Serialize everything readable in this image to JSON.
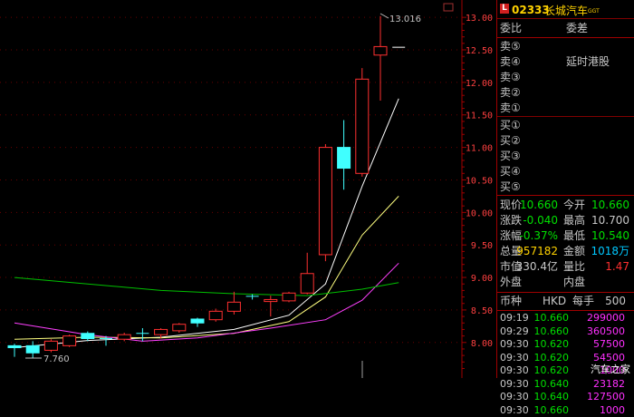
{
  "stock": {
    "badge": "L",
    "code": "02333",
    "name": "长城汽车",
    "tag": "GGT"
  },
  "chart_labels": {
    "high_marker": "13.016",
    "low_marker": "7.760"
  },
  "y_axis": {
    "ticks": [
      "13.00",
      "12.50",
      "12.00",
      "11.50",
      "11.00",
      "10.50",
      "10.00",
      "9.50",
      "9.00",
      "8.50",
      "8.00"
    ]
  },
  "order_book": {
    "ratio_label": "委比",
    "diff_label": "委差",
    "sell": [
      "卖⑤",
      "卖④",
      "卖③",
      "卖②",
      "卖①"
    ],
    "buy": [
      "买①",
      "买②",
      "买③",
      "买④",
      "买⑤"
    ],
    "notice": "延时港股"
  },
  "quote": {
    "rows": [
      {
        "l1": "现价",
        "v1": "10.660",
        "c1": "gn",
        "l2": "今开",
        "v2": "10.660",
        "c2": "gn"
      },
      {
        "l1": "涨跌",
        "v1": "-0.040",
        "c1": "gn",
        "l2": "最高",
        "v2": "10.700",
        "c2": "w"
      },
      {
        "l1": "涨幅",
        "v1": "-0.37%",
        "c1": "gn",
        "l2": "最低",
        "v2": "10.540",
        "c2": "gn"
      },
      {
        "l1": "总量",
        "v1": "957182",
        "c1": "yl",
        "l2": "金额",
        "v2": "1018万",
        "c2": "cy"
      },
      {
        "l1": "市值",
        "v1": "330.4亿",
        "c1": "w",
        "l2": "量比",
        "v2": "1.47",
        "c2": "rd"
      },
      {
        "l1": "外盘",
        "v1": "",
        "c1": "w",
        "l2": "内盘",
        "v2": "",
        "c2": "w"
      }
    ]
  },
  "currency": {
    "label": "币种",
    "value": "HKD",
    "lot_label": "每手",
    "lot": "500"
  },
  "trades": [
    {
      "time": "09:19",
      "price": "10.660",
      "vol": "299000"
    },
    {
      "time": "09:29",
      "price": "10.660",
      "vol": "360500"
    },
    {
      "time": "09:30",
      "price": "10.620",
      "vol": "57500"
    },
    {
      "time": "09:30",
      "price": "10.620",
      "vol": "54500"
    },
    {
      "time": "09:30",
      "price": "10.620",
      "vol": "1000"
    },
    {
      "time": "09:30",
      "price": "10.640",
      "vol": "23182"
    },
    {
      "time": "09:30",
      "price": "10.640",
      "vol": "127500"
    },
    {
      "time": "09:30",
      "price": "10.660",
      "vol": "1000"
    }
  ],
  "watermark": "汽车之家",
  "chart_data": {
    "type": "candlestick",
    "y_range": [
      7.66,
      13.16
    ],
    "candles": [
      {
        "o": 7.95,
        "h": 7.98,
        "l": 7.78,
        "c": 7.92
      },
      {
        "o": 7.95,
        "h": 8.02,
        "l": 7.76,
        "c": 7.84
      },
      {
        "o": 7.88,
        "h": 8.05,
        "l": 7.85,
        "c": 8.02
      },
      {
        "o": 7.95,
        "h": 8.12,
        "l": 7.93,
        "c": 8.1
      },
      {
        "o": 8.14,
        "h": 8.17,
        "l": 8.02,
        "c": 8.06
      },
      {
        "o": 8.06,
        "h": 8.1,
        "l": 7.95,
        "c": 8.05
      },
      {
        "o": 8.05,
        "h": 8.15,
        "l": 8.02,
        "c": 8.12
      },
      {
        "o": 8.14,
        "h": 8.22,
        "l": 8.02,
        "c": 8.12
      },
      {
        "o": 8.12,
        "h": 8.22,
        "l": 8.06,
        "c": 8.2
      },
      {
        "o": 8.18,
        "h": 8.3,
        "l": 8.15,
        "c": 8.28
      },
      {
        "o": 8.36,
        "h": 8.38,
        "l": 8.24,
        "c": 8.3
      },
      {
        "o": 8.35,
        "h": 8.52,
        "l": 8.32,
        "c": 8.48
      },
      {
        "o": 8.48,
        "h": 8.78,
        "l": 8.43,
        "c": 8.62
      },
      {
        "o": 8.71,
        "h": 8.74,
        "l": 8.66,
        "c": 8.69
      },
      {
        "o": 8.63,
        "h": 8.72,
        "l": 8.4,
        "c": 8.66
      },
      {
        "o": 8.64,
        "h": 8.78,
        "l": 8.62,
        "c": 8.76
      },
      {
        "o": 8.76,
        "h": 9.38,
        "l": 8.74,
        "c": 9.06
      },
      {
        "o": 9.35,
        "h": 11.05,
        "l": 9.25,
        "c": 11.0
      },
      {
        "o": 11.0,
        "h": 11.42,
        "l": 10.35,
        "c": 10.68
      },
      {
        "o": 10.6,
        "h": 12.22,
        "l": 10.55,
        "c": 12.05
      },
      {
        "o": 12.42,
        "h": 13.02,
        "l": 11.72,
        "c": 12.55
      },
      {
        "o": 12.54,
        "h": 12.54,
        "l": 12.54,
        "c": 12.54
      }
    ],
    "ma": [
      {
        "color": "#ffffff",
        "points": [
          [
            0,
            7.92
          ],
          [
            4,
            8.03
          ],
          [
            8,
            8.08
          ],
          [
            12,
            8.2
          ],
          [
            15,
            8.42
          ],
          [
            17,
            8.9
          ],
          [
            19,
            10.4
          ],
          [
            21,
            11.75
          ]
        ]
      },
      {
        "color": "#ffff80",
        "points": [
          [
            0,
            8.05
          ],
          [
            4,
            8.08
          ],
          [
            8,
            8.07
          ],
          [
            12,
            8.14
          ],
          [
            15,
            8.32
          ],
          [
            17,
            8.7
          ],
          [
            19,
            9.65
          ],
          [
            21,
            10.25
          ]
        ]
      },
      {
        "color": "#ff40ff",
        "points": [
          [
            0,
            8.3
          ],
          [
            4,
            8.12
          ],
          [
            7,
            8.02
          ],
          [
            10,
            8.07
          ],
          [
            14,
            8.22
          ],
          [
            17,
            8.35
          ],
          [
            19,
            8.65
          ],
          [
            21,
            9.22
          ]
        ]
      },
      {
        "color": "#00c000",
        "points": [
          [
            0,
            9.0
          ],
          [
            4,
            8.9
          ],
          [
            8,
            8.8
          ],
          [
            12,
            8.75
          ],
          [
            16,
            8.72
          ],
          [
            19,
            8.82
          ],
          [
            21,
            8.92
          ]
        ]
      }
    ]
  }
}
